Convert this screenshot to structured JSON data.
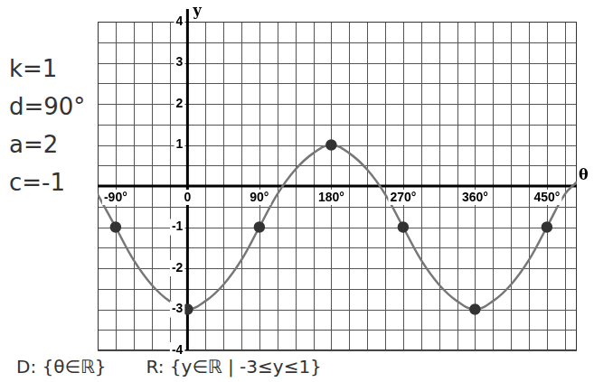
{
  "chart_data": {
    "type": "line",
    "x_label": "θ",
    "y_label": "y",
    "x": [
      -112.5,
      -90,
      -67.5,
      -45,
      -22.5,
      0,
      22.5,
      45,
      67.5,
      90,
      112.5,
      135,
      157.5,
      180,
      202.5,
      225,
      247.5,
      270,
      292.5,
      315,
      337.5,
      360,
      382.5,
      405,
      427.5,
      450,
      472.5,
      487.5
    ],
    "values": [
      -0.2,
      -1,
      -1.8,
      -2.4,
      -2.8,
      -3,
      -2.8,
      -2.4,
      -1.8,
      -1,
      -0.2,
      0.4,
      0.8,
      1,
      0.8,
      0.4,
      -0.2,
      -1,
      -1.8,
      -2.4,
      -2.8,
      -3,
      -2.8,
      -2.4,
      -1.8,
      -1,
      -0.2,
      0.1
    ],
    "color": "#777777",
    "marker": "circle",
    "line_style": "solid",
    "xlim": [
      -112.5,
      487.5
    ],
    "xticks": [
      {
        "value": -90,
        "label": "-90°"
      },
      {
        "value": 0,
        "label": "0"
      },
      {
        "value": 90,
        "label": "90°"
      },
      {
        "value": 180,
        "label": "180°"
      },
      {
        "value": 270,
        "label": "270°"
      },
      {
        "value": 360,
        "label": "360°"
      },
      {
        "value": 450,
        "label": "450°"
      }
    ],
    "ylim": [
      -4,
      4
    ],
    "yticks": [
      -4,
      -3,
      -2,
      -1,
      1,
      2,
      3,
      4
    ],
    "grid": true,
    "notes_left": [
      "k=1",
      "d=90°",
      "a=2",
      "c=-1"
    ],
    "notes_bottom": [
      "D: {θ∈ℝ}",
      "R: {y∈ℝ | -3≤y≤1}"
    ]
  }
}
